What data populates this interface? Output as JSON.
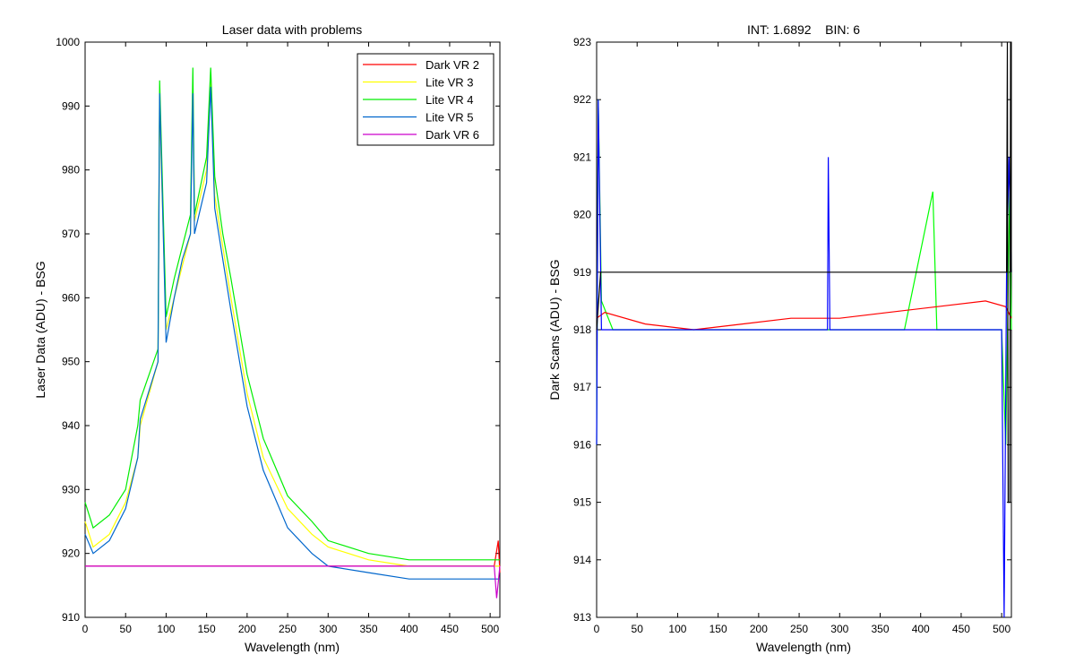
{
  "chart_data": [
    {
      "type": "line",
      "title": "Laser data with problems",
      "xlabel": "Wavelength (nm)",
      "ylabel": "Laser Data (ADU) - BSG",
      "xlim": [
        0,
        512
      ],
      "ylim": [
        910,
        1000
      ],
      "xticks": [
        0,
        50,
        100,
        150,
        200,
        250,
        300,
        350,
        400,
        450,
        500
      ],
      "yticks": [
        910,
        920,
        930,
        940,
        950,
        960,
        970,
        980,
        990,
        1000
      ],
      "grid": false,
      "legend_position": "top-right",
      "series": [
        {
          "name": "Dark VR 2",
          "color": "#ff0000",
          "x": [
            0,
            40,
            80,
            120,
            160,
            200,
            240,
            280,
            320,
            360,
            400,
            440,
            480,
            505,
            510,
            512
          ],
          "y": [
            918,
            918,
            918,
            918,
            918,
            918,
            918,
            918,
            918,
            918,
            918,
            918,
            918,
            918,
            922,
            917
          ]
        },
        {
          "name": "Lite VR 3",
          "color": "#ffff00",
          "x": [
            0,
            10,
            30,
            50,
            65,
            68,
            90,
            92,
            100,
            110,
            120,
            130,
            133,
            135,
            150,
            155,
            160,
            170,
            180,
            200,
            220,
            250,
            280,
            300,
            350,
            400,
            450,
            500,
            512
          ],
          "y": [
            925,
            921,
            923,
            928,
            935,
            940,
            950,
            990,
            955,
            960,
            965,
            970,
            994,
            972,
            980,
            994,
            976,
            968,
            960,
            945,
            935,
            927,
            923,
            921,
            919,
            918,
            918,
            918,
            918
          ]
        },
        {
          "name": "Lite VR 4",
          "color": "#00ee00",
          "x": [
            0,
            10,
            30,
            50,
            65,
            68,
            90,
            92,
            100,
            110,
            120,
            130,
            133,
            135,
            150,
            155,
            160,
            170,
            180,
            200,
            220,
            250,
            280,
            300,
            350,
            400,
            450,
            500,
            512
          ],
          "y": [
            928,
            924,
            926,
            930,
            940,
            944,
            952,
            994,
            957,
            963,
            968,
            973,
            996,
            973,
            982,
            996,
            979,
            970,
            963,
            948,
            938,
            929,
            925,
            922,
            920,
            919,
            919,
            919,
            919
          ]
        },
        {
          "name": "Lite VR 5",
          "color": "#0066cc",
          "x": [
            0,
            10,
            30,
            50,
            65,
            68,
            90,
            92,
            100,
            110,
            120,
            130,
            133,
            135,
            150,
            155,
            160,
            170,
            180,
            200,
            220,
            250,
            280,
            300,
            350,
            400,
            450,
            500,
            512
          ],
          "y": [
            923,
            920,
            922,
            927,
            935,
            941,
            950,
            992,
            953,
            960,
            966,
            970,
            992,
            970,
            978,
            993,
            974,
            966,
            958,
            943,
            933,
            924,
            920,
            918,
            917,
            916,
            916,
            916,
            916
          ]
        },
        {
          "name": "Dark VR 6",
          "color": "#cc00cc",
          "x": [
            0,
            40,
            80,
            120,
            160,
            200,
            240,
            280,
            320,
            360,
            400,
            440,
            480,
            505,
            508,
            512
          ],
          "y": [
            918,
            918,
            918,
            918,
            918,
            918,
            918,
            918,
            918,
            918,
            918,
            918,
            918,
            918,
            913,
            918
          ]
        }
      ]
    },
    {
      "type": "line",
      "title": "INT: 1.6892    BIN: 6",
      "xlabel": "Wavelength (nm)",
      "ylabel": "Dark Scans (ADU) - BSG",
      "xlim": [
        0,
        512
      ],
      "ylim": [
        913,
        923
      ],
      "xticks": [
        0,
        50,
        100,
        150,
        200,
        250,
        300,
        350,
        400,
        450,
        500
      ],
      "yticks": [
        913,
        914,
        915,
        916,
        917,
        918,
        919,
        920,
        921,
        922,
        923
      ],
      "grid": false,
      "series": [
        {
          "color": "#00ff00",
          "x": [
            0,
            2,
            6,
            20,
            60,
            100,
            140,
            180,
            220,
            260,
            300,
            340,
            380,
            415,
            420,
            460,
            500,
            505,
            510,
            512
          ],
          "y": [
            916,
            922,
            918.5,
            918,
            918,
            918,
            918,
            918,
            918,
            918,
            918,
            918,
            918,
            920.4,
            918,
            918,
            918,
            916,
            920.5,
            918
          ]
        },
        {
          "color": "#ff0000",
          "x": [
            0,
            10,
            60,
            120,
            180,
            240,
            300,
            360,
            420,
            480,
            505,
            512
          ],
          "y": [
            918.2,
            918.3,
            918.1,
            918.0,
            918.1,
            918.2,
            918.2,
            918.3,
            918.4,
            918.5,
            918.4,
            918.2
          ]
        },
        {
          "color": "#0000ff",
          "x": [
            0,
            2,
            6,
            100,
            200,
            285,
            286,
            288,
            300,
            400,
            500,
            503,
            506,
            509,
            512
          ],
          "y": [
            916,
            922,
            918,
            918,
            918,
            918,
            921,
            918,
            918,
            918,
            918,
            913,
            919,
            921,
            919
          ]
        },
        {
          "color": "#000000",
          "x": [
            0,
            5,
            100,
            200,
            300,
            400,
            500,
            506,
            507,
            508,
            510,
            511,
            512
          ],
          "y": [
            918,
            919,
            919,
            919,
            919,
            919,
            919,
            919,
            923,
            915,
            915,
            923,
            919
          ]
        }
      ]
    }
  ]
}
